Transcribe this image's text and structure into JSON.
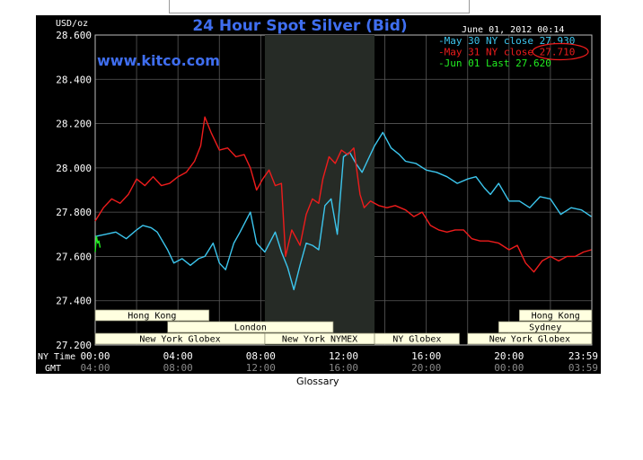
{
  "header": {
    "unit": "USD/oz",
    "date_time": "June 01, 2012 00:14",
    "website": "www.kitco.com"
  },
  "footer": {
    "glossary_label": "Glossary"
  },
  "colors": {
    "background": "#000000",
    "plot": "#000000",
    "title": "#3f6ef0",
    "may30": "#3cc6ee",
    "may31": "#ee1c1c",
    "jun01": "#22ee22",
    "grid": "#5a5a5a",
    "session_fill": "#ffffe0",
    "session_text": "#000000",
    "nymex_shade": "#262b26"
  },
  "chart_data": {
    "type": "line",
    "title": "24 Hour Spot Silver (Bid)",
    "ylabel": "USD/oz",
    "ylim": [
      27.2,
      28.6
    ],
    "y_ticks": [
      "28.600",
      "28.400",
      "28.200",
      "28.000",
      "27.800",
      "27.600",
      "27.400",
      "27.200"
    ],
    "x_range_hours": [
      0,
      24
    ],
    "x_axis_rows": [
      {
        "label": "NY Time",
        "ticks": [
          "00:00",
          "04:00",
          "08:00",
          "12:00",
          "16:00",
          "20:00",
          "23:59"
        ]
      },
      {
        "label": "GMT",
        "ticks": [
          "04:00",
          "08:00",
          "12:00",
          "16:00",
          "20:00",
          "00:00",
          "03:59"
        ]
      }
    ],
    "legend": [
      {
        "text": "May 30 NY close 27.930",
        "color": "#3cc6ee",
        "circled": false
      },
      {
        "text": "May 31 NY close 27.710",
        "color": "#ee1c1c",
        "circled": true
      },
      {
        "text": "Jun 01 Last 27.620",
        "color": "#22ee22",
        "circled": false
      }
    ],
    "legend_position": "top-right",
    "shaded_region_hours": [
      8.2,
      13.5
    ],
    "sessions": [
      {
        "name": "Hong Kong",
        "row": 0,
        "start": 0,
        "end": 5.5
      },
      {
        "name": "Hong Kong",
        "row": 0,
        "start": 20.5,
        "end": 24
      },
      {
        "name": "London",
        "row": 1,
        "start": 3.5,
        "end": 11.5
      },
      {
        "name": "Sydney",
        "row": 1,
        "start": 19.5,
        "end": 24
      },
      {
        "name": "New York Globex",
        "row": 2,
        "start": 0,
        "end": 8.2
      },
      {
        "name": "New York NYMEX",
        "row": 2,
        "start": 8.2,
        "end": 13.5
      },
      {
        "name": "NY Globex",
        "row": 2,
        "start": 13.5,
        "end": 17.6
      },
      {
        "name": "New York Globex",
        "row": 2,
        "start": 18,
        "end": 24
      }
    ],
    "series": [
      {
        "name": "May 30",
        "color": "#3cc6ee",
        "x": [
          0,
          0.5,
          1,
          1.5,
          2,
          2.3,
          2.7,
          3,
          3.5,
          3.8,
          4.2,
          4.6,
          5,
          5.3,
          5.7,
          6,
          6.3,
          6.7,
          7,
          7.5,
          7.8,
          8.2,
          8.7,
          9,
          9.3,
          9.6,
          9.9,
          10.2,
          10.5,
          10.8,
          11.1,
          11.4,
          11.7,
          12,
          12.3,
          12.6,
          12.9,
          13.2,
          13.5,
          13.9,
          14.3,
          14.7,
          15,
          15.5,
          16,
          16.5,
          17,
          17.5,
          18,
          18.4,
          18.8,
          19.1,
          19.5,
          20,
          20.5,
          21,
          21.5,
          22,
          22.5,
          23,
          23.5,
          23.98
        ],
        "y": [
          27.69,
          27.7,
          27.71,
          27.68,
          27.72,
          27.74,
          27.73,
          27.71,
          27.63,
          27.57,
          27.59,
          27.56,
          27.59,
          27.6,
          27.66,
          27.57,
          27.54,
          27.66,
          27.71,
          27.8,
          27.66,
          27.62,
          27.71,
          27.62,
          27.55,
          27.45,
          27.56,
          27.66,
          27.65,
          27.63,
          27.83,
          27.86,
          27.7,
          28.05,
          28.07,
          28.02,
          27.98,
          28.04,
          28.1,
          28.16,
          28.09,
          28.06,
          28.03,
          28.02,
          27.99,
          27.98,
          27.96,
          27.93,
          27.95,
          27.96,
          27.91,
          27.88,
          27.93,
          27.85,
          27.85,
          27.82,
          27.87,
          27.86,
          27.79,
          27.82,
          27.81,
          27.78
        ]
      },
      {
        "name": "May 31",
        "color": "#ee1c1c",
        "x": [
          0,
          0.4,
          0.8,
          1.2,
          1.6,
          2,
          2.4,
          2.8,
          3.2,
          3.6,
          4,
          4.4,
          4.8,
          5.1,
          5.3,
          5.6,
          6,
          6.4,
          6.8,
          7.2,
          7.5,
          7.8,
          8.1,
          8.4,
          8.7,
          9,
          9.2,
          9.5,
          9.9,
          10.2,
          10.5,
          10.8,
          11,
          11.3,
          11.6,
          11.9,
          12.2,
          12.5,
          12.8,
          13,
          13.3,
          13.7,
          14.1,
          14.5,
          15,
          15.4,
          15.8,
          16.2,
          16.6,
          17,
          17.4,
          17.8,
          18.2,
          18.6,
          19,
          19.5,
          20,
          20.4,
          20.8,
          21.2,
          21.6,
          22,
          22.4,
          22.8,
          23.2,
          23.6,
          23.98
        ],
        "y": [
          27.76,
          27.82,
          27.86,
          27.84,
          27.88,
          27.95,
          27.92,
          27.96,
          27.92,
          27.93,
          27.96,
          27.98,
          28.03,
          28.1,
          28.23,
          28.16,
          28.08,
          28.09,
          28.05,
          28.06,
          28.0,
          27.9,
          27.95,
          27.99,
          27.92,
          27.93,
          27.6,
          27.72,
          27.65,
          27.79,
          27.86,
          27.84,
          27.95,
          28.05,
          28.02,
          28.08,
          28.06,
          28.09,
          27.88,
          27.82,
          27.85,
          27.83,
          27.82,
          27.83,
          27.81,
          27.78,
          27.8,
          27.74,
          27.72,
          27.71,
          27.72,
          27.72,
          27.68,
          27.67,
          27.67,
          27.66,
          27.63,
          27.65,
          27.57,
          27.53,
          27.58,
          27.6,
          27.58,
          27.6,
          27.6,
          27.62,
          27.63
        ]
      },
      {
        "name": "Jun 01",
        "color": "#22ee22",
        "x": [
          0,
          0.06,
          0.12,
          0.18,
          0.24
        ],
        "y": [
          27.62,
          27.69,
          27.66,
          27.67,
          27.64
        ]
      }
    ]
  }
}
